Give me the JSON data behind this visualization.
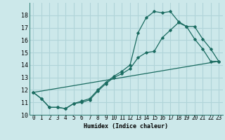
{
  "title": "",
  "xlabel": "Humidex (Indice chaleur)",
  "ylabel": "",
  "bg_color": "#cce8ea",
  "grid_color": "#b0d4d8",
  "line_color": "#1a6b60",
  "xlim": [
    -0.5,
    23.5
  ],
  "ylim": [
    10,
    19
  ],
  "yticks": [
    10,
    11,
    12,
    13,
    14,
    15,
    16,
    17,
    18
  ],
  "xticks": [
    0,
    1,
    2,
    3,
    4,
    5,
    6,
    7,
    8,
    9,
    10,
    11,
    12,
    13,
    14,
    15,
    16,
    17,
    18,
    19,
    20,
    21,
    22,
    23
  ],
  "curve1_x": [
    0,
    1,
    2,
    3,
    4,
    5,
    6,
    7,
    8,
    9,
    10,
    11,
    12,
    13,
    14,
    15,
    16,
    17,
    18,
    19,
    20,
    21,
    22,
    23
  ],
  "curve1_y": [
    11.8,
    11.3,
    10.6,
    10.6,
    10.5,
    10.9,
    11.0,
    11.2,
    11.9,
    12.5,
    13.0,
    13.3,
    13.7,
    14.6,
    15.0,
    15.1,
    16.2,
    16.8,
    17.4,
    17.1,
    16.1,
    15.3,
    14.3,
    14.3
  ],
  "curve2_x": [
    0,
    1,
    2,
    3,
    4,
    5,
    6,
    7,
    8,
    9,
    10,
    11,
    12,
    13,
    14,
    15,
    16,
    17,
    18,
    19,
    20,
    21,
    22,
    23
  ],
  "curve2_y": [
    11.8,
    11.3,
    10.6,
    10.6,
    10.5,
    10.9,
    11.1,
    11.3,
    12.0,
    12.6,
    13.1,
    13.5,
    14.0,
    16.6,
    17.8,
    18.3,
    18.2,
    18.3,
    17.5,
    17.1,
    17.1,
    16.1,
    15.3,
    14.3
  ],
  "curve3_x": [
    0,
    23
  ],
  "curve3_y": [
    11.8,
    14.3
  ],
  "xlabel_fontsize": 6,
  "tick_fontsize": 5.5,
  "ytick_fontsize": 6.0,
  "marker_size": 1.8,
  "line_width": 0.9
}
